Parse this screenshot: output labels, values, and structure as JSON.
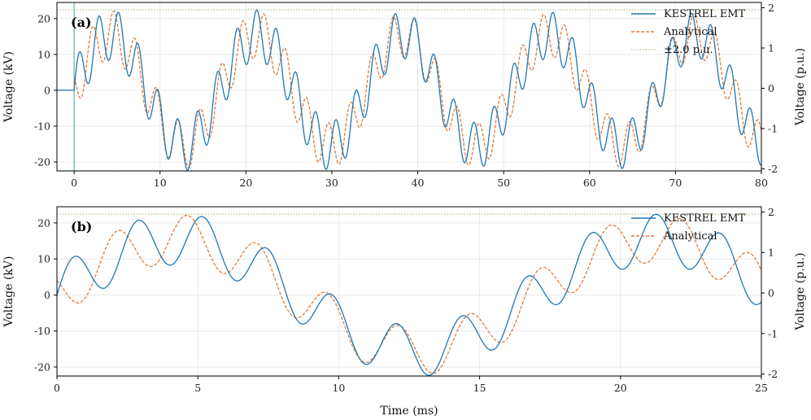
{
  "colors": {
    "emt": "#1f77b4",
    "analytical": "#e07b39",
    "limit": "#8fbc6b"
  },
  "chart_data": [
    {
      "type": "line",
      "panel_label": "(a)",
      "xlabel": "",
      "ylabel": "Voltage (kV)",
      "ylabel_right": "Voltage (p.u.)",
      "xlim": [
        -2,
        80
      ],
      "ylim": [
        -22.5,
        24.5
      ],
      "ylim_right": [
        -2.05,
        2.13
      ],
      "xticks": [
        0,
        10,
        20,
        30,
        40,
        50,
        60,
        70,
        80
      ],
      "yticks": [
        -20,
        -10,
        0,
        10,
        20
      ],
      "yticks_right": [
        -2,
        -1,
        0,
        1,
        2
      ],
      "grid": true,
      "legend_position": "top-right",
      "events": [
        {
          "type": "switching",
          "x": 0
        }
      ],
      "limit_lines_kV": [
        22.45,
        -22.45
      ],
      "legend": [
        "KESTREL EMT",
        "Analytical",
        "±2.0 p.u."
      ],
      "series": [
        {
          "name": "KESTREL EMT",
          "style": "solid",
          "model": {
            "t_start": 0,
            "mains_amp": 15.5,
            "mains_freq_khz": 0.0588,
            "osc_amp": 7.2,
            "osc_freq_khz": 0.435,
            "osc_damping_per_ms": 0.002
          }
        },
        {
          "name": "Analytical",
          "style": "dashed",
          "model": {
            "t_start": 0,
            "mains_amp": 15.5,
            "mains_freq_khz": 0.0588,
            "osc_amp": 6.8,
            "osc_freq_khz": 0.4,
            "osc_phase_shift_ms": 1.0,
            "osc_damping_per_ms": 0.002
          }
        }
      ]
    },
    {
      "type": "line",
      "panel_label": "(b)",
      "xlabel": "Time (ms)",
      "ylabel": "Voltage (kV)",
      "ylabel_right": "Voltage (p.u.)",
      "xlim": [
        0,
        25
      ],
      "ylim": [
        -22.5,
        24.5
      ],
      "ylim_right": [
        -2.05,
        2.13
      ],
      "xticks": [
        0,
        5,
        10,
        15,
        20,
        25
      ],
      "yticks": [
        -20,
        -10,
        0,
        10,
        20
      ],
      "yticks_right": [
        -2,
        -1,
        0,
        1,
        2
      ],
      "grid": true,
      "legend_position": "top-right",
      "limit_lines_kV": [
        22.45,
        -22.45
      ],
      "legend": [
        "KESTREL EMT",
        "Analytical"
      ],
      "series": [
        {
          "name": "KESTREL EMT",
          "style": "solid",
          "model": {
            "t_start": 0,
            "mains_amp": 15.5,
            "mains_freq_khz": 0.0588,
            "osc_amp": 7.2,
            "osc_freq_khz": 0.435,
            "osc_damping_per_ms": 0.002
          }
        },
        {
          "name": "Analytical",
          "style": "dashed",
          "model": {
            "t_start": 0,
            "mains_amp": 15.5,
            "mains_freq_khz": 0.0588,
            "osc_amp": 6.8,
            "osc_freq_khz": 0.4,
            "osc_phase_shift_ms": 1.0,
            "osc_damping_per_ms": 0.002
          }
        }
      ]
    }
  ]
}
